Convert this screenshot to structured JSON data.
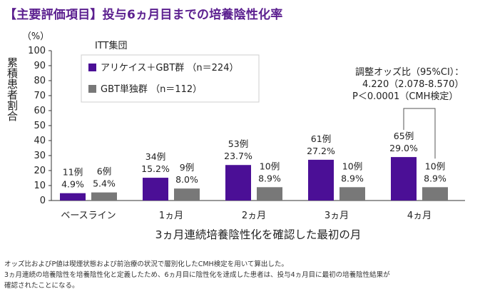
{
  "header": {
    "title": "【主要評価項目】投与6ヵ月目までの培養陰性化率"
  },
  "chart_data": {
    "type": "bar",
    "title": "【主要評価項目】投与6ヵ月目までの培養陰性化率",
    "ylabel": "累積患者割合",
    "yunit": "（%）",
    "xlabel": "3ヵ月連続培養陰性化を確認した最初の月",
    "ylim": [
      0,
      100
    ],
    "yticks": [
      0,
      10,
      20,
      30,
      40,
      50,
      60,
      70,
      80,
      90,
      100
    ],
    "grid": false,
    "legend_title": "ITT集団",
    "legend_position": "top-left",
    "categories": [
      "ベースライン",
      "1ヵ月",
      "2ヵ月",
      "3ヵ月",
      "4ヵ月"
    ],
    "series": [
      {
        "name": "アリケイス＋GBT群 （n＝224）",
        "color": "#4b0f96",
        "values": [
          4.9,
          15.2,
          23.7,
          27.2,
          29.0
        ],
        "labels_n": [
          "11例",
          "34例",
          "53例",
          "61例",
          "65例"
        ],
        "labels_pct": [
          "4.9%",
          "15.2%",
          "23.7%",
          "27.2%",
          "29.0%"
        ]
      },
      {
        "name": "GBT単独群 （n＝112）",
        "color": "#787878",
        "values": [
          5.4,
          8.0,
          8.9,
          8.9,
          8.9
        ],
        "labels_n": [
          "6例",
          "9例",
          "10例",
          "10例",
          "10例"
        ],
        "labels_pct": [
          "5.4%",
          "8.0%",
          "8.9%",
          "8.9%",
          "8.9%"
        ]
      }
    ],
    "annotation": {
      "lines": [
        "調整オッズ比（95%CI）：",
        "4.220（2.078-8.570）",
        "P＜0.0001（CMH検定）"
      ],
      "category": "4ヵ月"
    }
  },
  "footnotes": [
    "オッズ比およびP値は喫煙状態および前治療の状況で層別化したCMH検定を用いて算出した。",
    "3ヵ月連続の培養陰性を培養陰性化と定義したため、6ヵ月目に陰性化を達成した患者は、投与4ヵ月目に最初の培養陰性結果が",
    "確認されたことになる。"
  ]
}
